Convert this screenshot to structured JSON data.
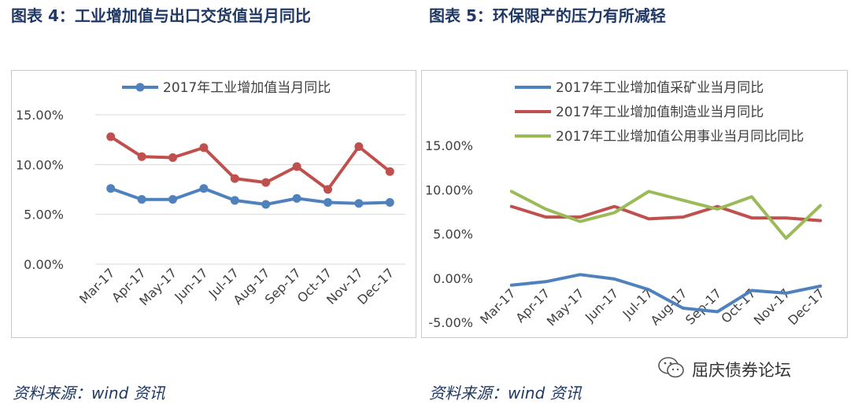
{
  "header": {
    "left_title": "图表 4：工业增加值与出口交货值当月同比",
    "right_title": "图表 5：环保限产的压力有所减轻"
  },
  "source": {
    "left": "资料来源：wind 资讯",
    "right": "资料来源：wind 资讯"
  },
  "watermark": {
    "text": "屈庆债券论坛",
    "icon": "wechat-icon"
  },
  "chart_data": [
    {
      "type": "line",
      "categories": [
        "Mar-17",
        "Apr-17",
        "May-17",
        "Jun-17",
        "Jul-17",
        "Aug-17",
        "Sep-17",
        "Oct-17",
        "Nov-17",
        "Dec-17"
      ],
      "ylim": [
        0,
        15
      ],
      "yticks": [
        "0.00%",
        "5.00%",
        "10.00%",
        "15.00%"
      ],
      "grid": true,
      "legend": "top",
      "series": [
        {
          "name": "2017年工业增加值当月同比",
          "color": "#4f81bd",
          "markers": true,
          "values": [
            7.6,
            6.5,
            6.5,
            7.6,
            6.4,
            6.0,
            6.6,
            6.2,
            6.1,
            6.2
          ]
        },
        {
          "name": "",
          "color": "#c0504d",
          "markers": true,
          "values": [
            12.8,
            10.8,
            10.7,
            11.7,
            8.6,
            8.2,
            9.8,
            7.5,
            11.8,
            9.3
          ]
        }
      ]
    },
    {
      "type": "line",
      "categories": [
        "Mar-17",
        "Apr-17",
        "May-17",
        "Jun-17",
        "Jul-17",
        "Aug-17",
        "Sep-17",
        "Oct-17",
        "Nov-17",
        "Dec-17"
      ],
      "ylim": [
        -5,
        15
      ],
      "yticks": [
        "-5.00%",
        "0.00%",
        "5.00%",
        "10.00%",
        "15.00%"
      ],
      "grid": false,
      "legend": "top",
      "series": [
        {
          "name": "2017年工业增加值采矿业当月同比",
          "color": "#4f81bd",
          "markers": false,
          "values": [
            -0.8,
            -0.4,
            0.4,
            -0.1,
            -1.3,
            -3.4,
            -3.8,
            -1.4,
            -1.7,
            -0.9
          ]
        },
        {
          "name": "2017年工业增加值制造业当月同比",
          "color": "#c0504d",
          "markers": false,
          "values": [
            8.1,
            6.9,
            6.9,
            8.1,
            6.7,
            6.9,
            8.1,
            6.8,
            6.8,
            6.5
          ]
        },
        {
          "name": "2017年工业增加值公用事业当月同比同比",
          "color": "#9bbb59",
          "markers": false,
          "values": [
            9.8,
            7.8,
            6.4,
            7.4,
            9.8,
            8.8,
            7.8,
            9.2,
            4.5,
            8.2
          ]
        }
      ]
    }
  ]
}
